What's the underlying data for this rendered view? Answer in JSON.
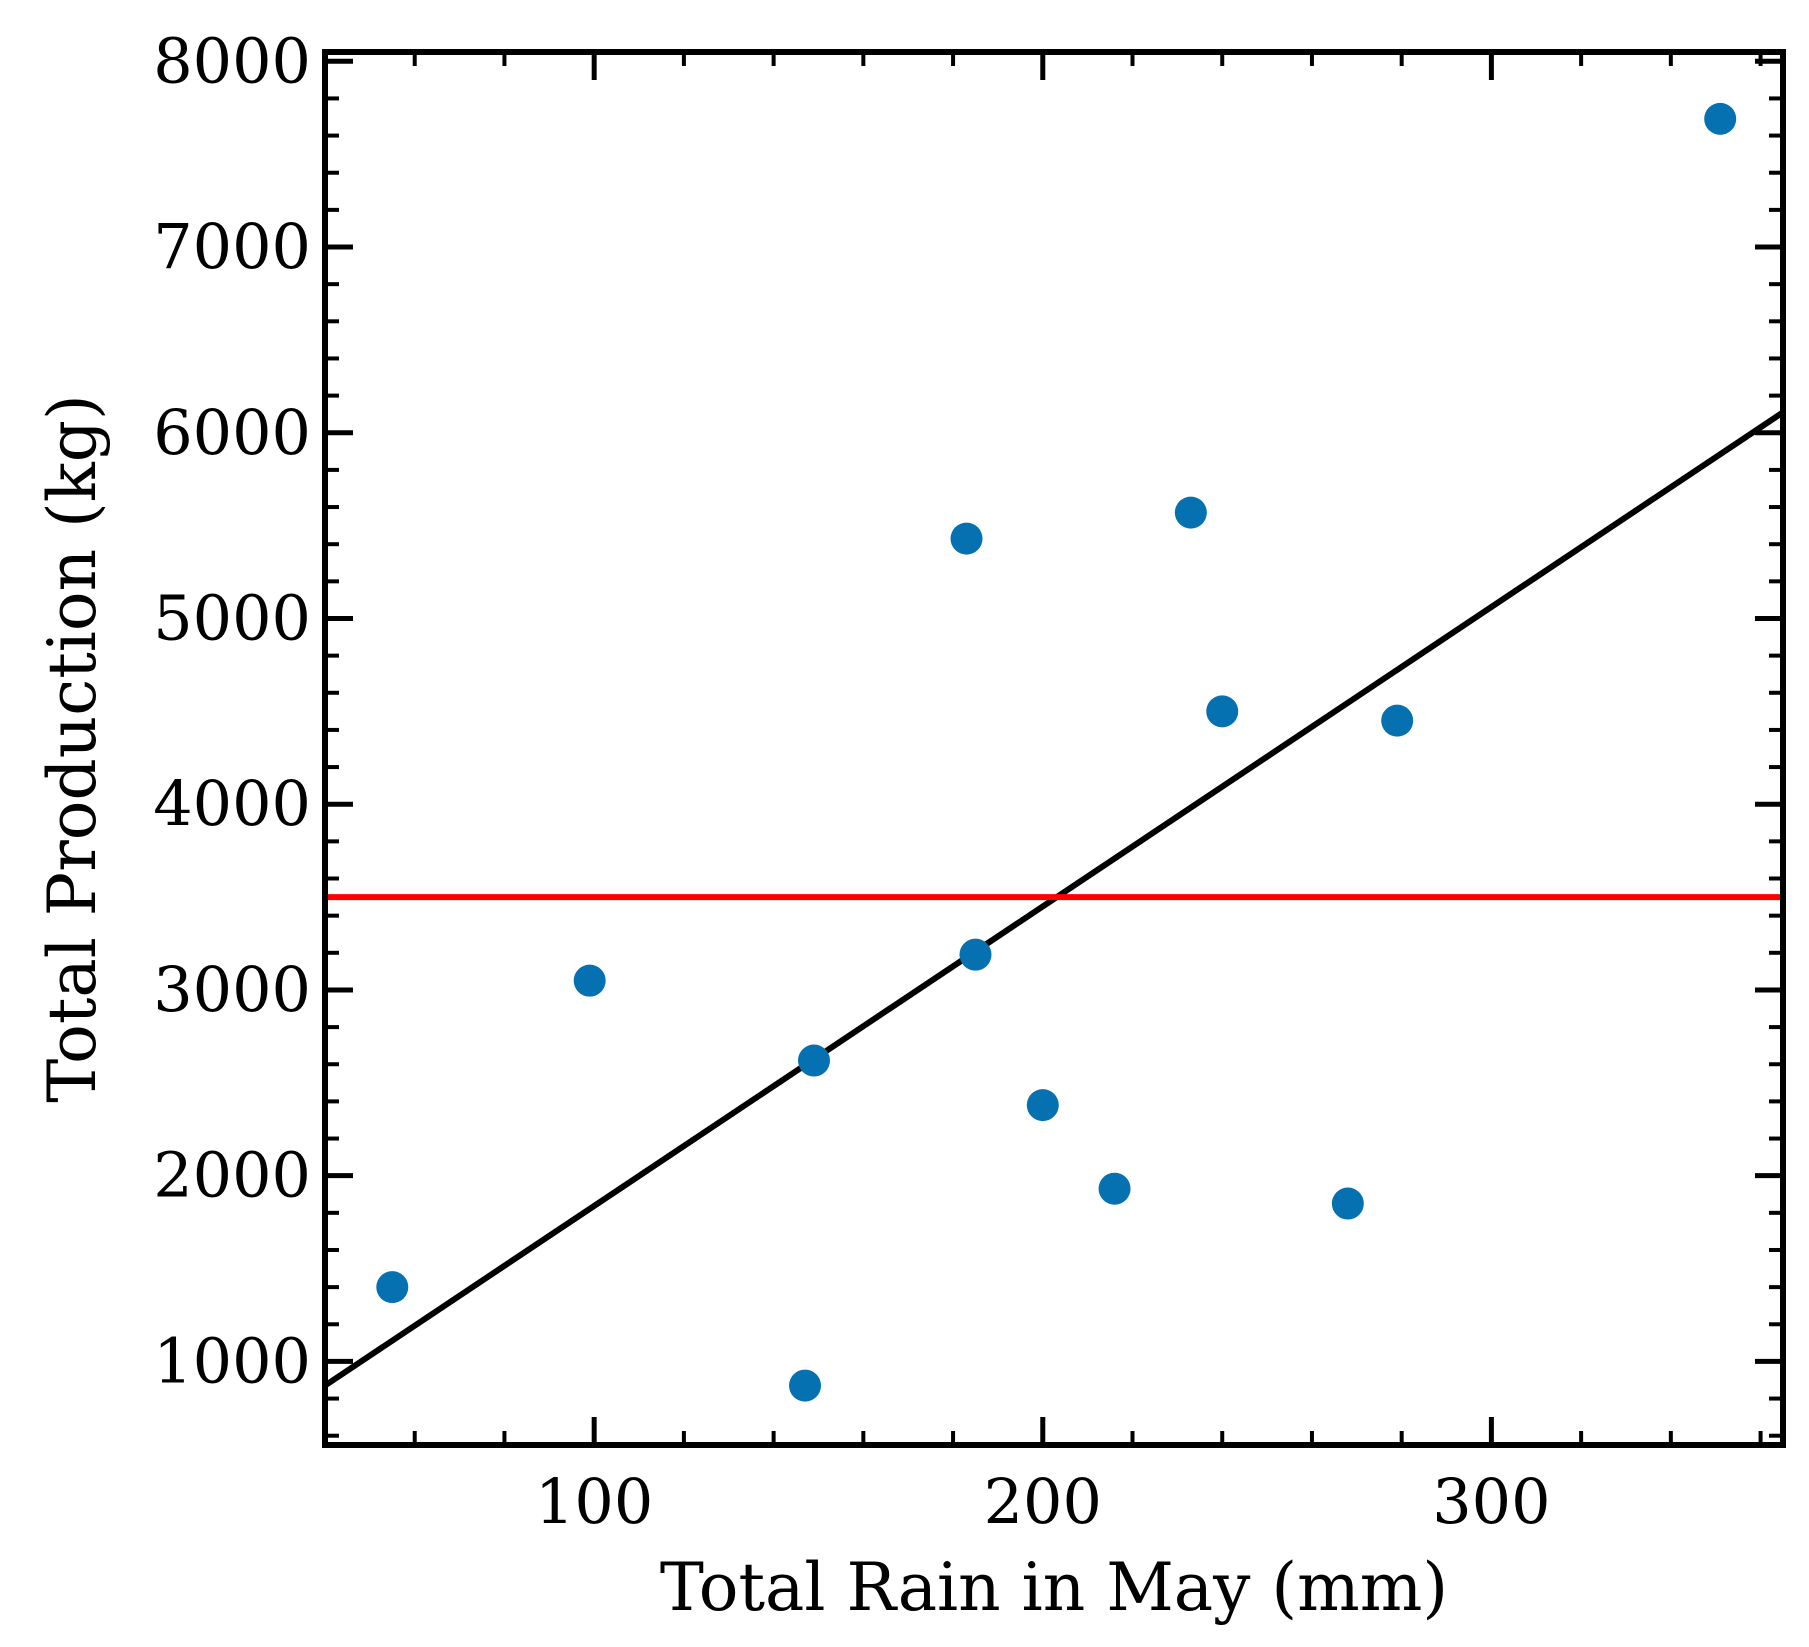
{
  "chart_data": {
    "type": "scatter",
    "title": "",
    "xlabel": "Total Rain in May (mm)",
    "ylabel": "Total Production (kg)",
    "xlim": [
      40,
      365
    ],
    "ylim": [
      550,
      8050
    ],
    "x_ticks": [
      100,
      200,
      300
    ],
    "y_ticks": [
      1000,
      2000,
      3000,
      4000,
      5000,
      6000,
      7000,
      8000
    ],
    "x_minor_step": 20,
    "y_minor_step": 200,
    "grid": false,
    "legend": "none",
    "colors": {
      "points": "#0571b0",
      "fit_line": "#000000",
      "threshold_line": "#ff0000"
    },
    "points": [
      {
        "x": 55,
        "y": 1400
      },
      {
        "x": 99,
        "y": 3050
      },
      {
        "x": 147,
        "y": 870
      },
      {
        "x": 149,
        "y": 2620
      },
      {
        "x": 183,
        "y": 5430
      },
      {
        "x": 185,
        "y": 3190
      },
      {
        "x": 200,
        "y": 2380
      },
      {
        "x": 216,
        "y": 1930
      },
      {
        "x": 233,
        "y": 5570
      },
      {
        "x": 240,
        "y": 4500
      },
      {
        "x": 268,
        "y": 1850
      },
      {
        "x": 279,
        "y": 4450
      },
      {
        "x": 351,
        "y": 7690
      }
    ],
    "fit_line": {
      "x": [
        40,
        365
      ],
      "y": [
        870,
        6110
      ]
    },
    "threshold_line": {
      "y": 3500
    }
  }
}
